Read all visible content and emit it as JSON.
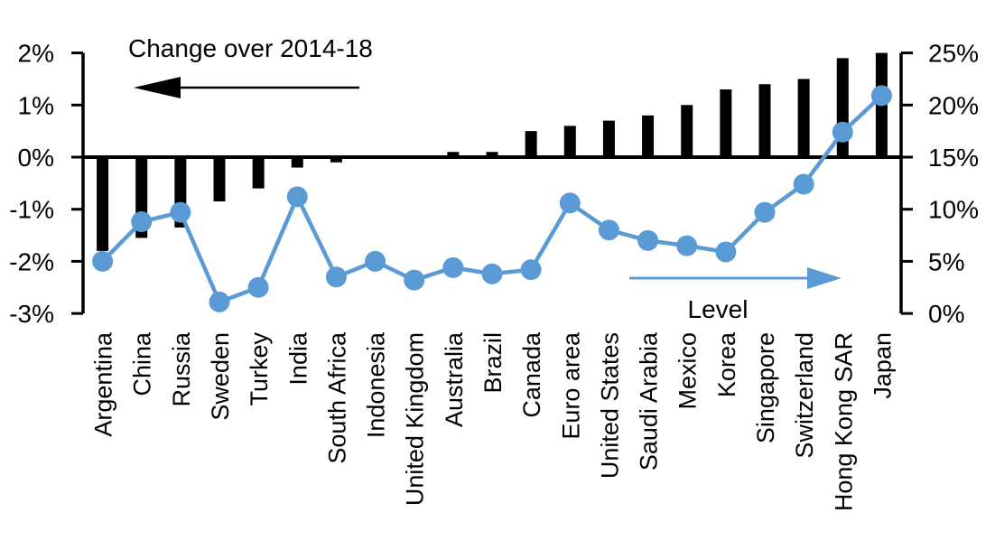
{
  "chart_data": {
    "type": "combo-bar-line",
    "categories": [
      "Argentina",
      "China",
      "Russia",
      "Sweden",
      "Turkey",
      "India",
      "South Africa",
      "Indonesia",
      "United Kingdom",
      "Australia",
      "Brazil",
      "Canada",
      "Euro area",
      "United States",
      "Saudi Arabia",
      "Mexico",
      "Korea",
      "Singapore",
      "Switzerland",
      "Hong Kong SAR",
      "Japan"
    ],
    "series": [
      {
        "name": "Change over 2014-18",
        "type": "bar",
        "axis": "left",
        "color": "#000000",
        "values": [
          -1.8,
          -1.55,
          -1.35,
          -0.85,
          -0.6,
          -0.2,
          -0.1,
          0,
          0,
          0.1,
          0.1,
          0.5,
          0.6,
          0.7,
          0.8,
          1.0,
          1.3,
          1.4,
          1.5,
          1.9,
          2.0
        ]
      },
      {
        "name": "Level",
        "type": "line",
        "axis": "right",
        "color": "#5B9BD5",
        "values": [
          5.0,
          8.8,
          9.7,
          1.1,
          2.5,
          11.2,
          3.5,
          5.0,
          3.2,
          4.4,
          3.8,
          4.2,
          10.6,
          8.0,
          7.0,
          6.5,
          5.9,
          9.7,
          12.4,
          17.4,
          20.9
        ]
      }
    ],
    "left_axis": {
      "tick_labels": [
        "2%",
        "1%",
        "0%",
        "-1%",
        "-2%",
        "-3%"
      ],
      "tick_values": [
        2,
        1,
        0,
        -1,
        -2,
        -3
      ],
      "min": -3,
      "max": 2
    },
    "right_axis": {
      "tick_labels": [
        "25%",
        "20%",
        "15%",
        "10%",
        "5%",
        "0%"
      ],
      "tick_values": [
        25,
        20,
        15,
        10,
        5,
        0
      ],
      "min": 0,
      "max": 25
    },
    "annotations": [
      {
        "id": "bar-series-annotation",
        "text": "Change over 2014-18",
        "arrow_direction": "left",
        "color": "#000000"
      },
      {
        "id": "line-series-annotation",
        "text": "Level",
        "arrow_direction": "right",
        "color": "#5B9BD5"
      }
    ],
    "grid": false,
    "legend_position": "in-plot annotations",
    "baseline_note": "left 0% coincides with right 15%"
  }
}
